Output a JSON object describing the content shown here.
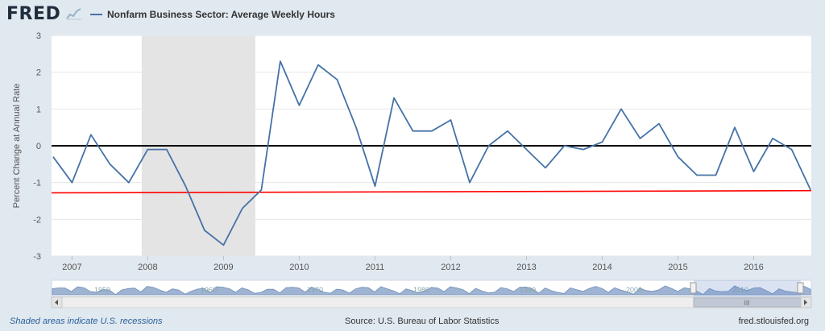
{
  "header": {
    "logo_text": "FRED",
    "legend_label": "Nonfarm Business Sector: Average Weekly Hours"
  },
  "footer": {
    "left_note": "Shaded areas indicate U.S. recessions",
    "source": "Source: U.S. Bureau of Labor Statistics",
    "site": "fred.stlouisfed.org"
  },
  "colors": {
    "series": "#4572a7",
    "zero_line": "#000000",
    "reference_line": "#ff0000",
    "recession": "#e4e4e4",
    "navigator_fill": "#9fb3d2"
  },
  "chart_data": {
    "type": "line",
    "ylabel": "Percent Change at Annual Rate",
    "ylim": [
      -3,
      3
    ],
    "yticks": [
      "3",
      "2",
      "1",
      "0",
      "-1",
      "-2",
      "-3"
    ],
    "xlim": [
      2006.73,
      2016.76
    ],
    "xticks": [
      "2007",
      "2008",
      "2009",
      "2010",
      "2011",
      "2012",
      "2013",
      "2014",
      "2015",
      "2016"
    ],
    "grid": "horizontal",
    "recession": [
      2007.92,
      2009.42
    ],
    "zero_line": 0,
    "reference_line": {
      "x": [
        2006.73,
        2016.76
      ],
      "y": [
        -1.28,
        -1.22
      ]
    },
    "series": [
      {
        "name": "Nonfarm Business Sector: Average Weekly Hours",
        "x": [
          2006.75,
          2007.0,
          2007.25,
          2007.5,
          2007.75,
          2008.0,
          2008.25,
          2008.5,
          2008.75,
          2009.0,
          2009.25,
          2009.5,
          2009.75,
          2010.0,
          2010.25,
          2010.5,
          2010.75,
          2011.0,
          2011.25,
          2011.5,
          2011.75,
          2012.0,
          2012.25,
          2012.5,
          2012.75,
          2013.0,
          2013.25,
          2013.5,
          2013.75,
          2014.0,
          2014.25,
          2014.5,
          2014.75,
          2015.0,
          2015.25,
          2015.5,
          2015.75,
          2016.0,
          2016.25,
          2016.5,
          2016.75
        ],
        "y": [
          -0.3,
          -1.0,
          0.3,
          -0.5,
          -1.0,
          -0.1,
          -0.1,
          -1.1,
          -2.3,
          -2.7,
          -1.7,
          -1.2,
          2.3,
          1.1,
          2.2,
          1.8,
          0.5,
          -1.1,
          1.3,
          0.4,
          0.4,
          0.7,
          -1.0,
          0.0,
          0.4,
          -0.1,
          -0.6,
          0.0,
          -0.1,
          0.1,
          1.0,
          0.2,
          0.6,
          -0.3,
          -0.8,
          -0.8,
          0.5,
          -0.7,
          0.2,
          -0.1,
          -1.2
        ]
      }
    ],
    "navigator": {
      "labels": [
        "1950",
        "1960",
        "1970",
        "1980",
        "1990",
        "2000",
        "2010"
      ],
      "scrollbar_grip": "III"
    }
  }
}
